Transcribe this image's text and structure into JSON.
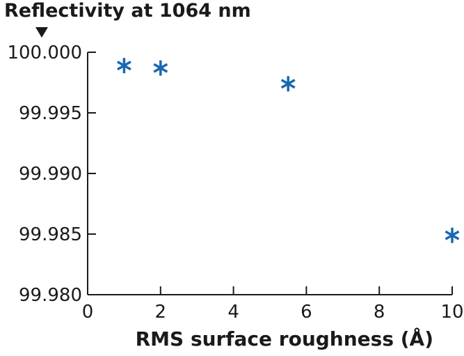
{
  "chart_data": {
    "type": "scatter",
    "title": "",
    "ylabel": "Reflectivity at 1064 nm",
    "xlabel": "RMS surface roughness (Å)",
    "xlim": [
      0,
      10
    ],
    "ylim": [
      99.98,
      100.0
    ],
    "xticks": [
      0,
      2,
      4,
      6,
      8,
      10
    ],
    "yticks": [
      99.98,
      99.985,
      99.99,
      99.995,
      100.0
    ],
    "xtick_labels": [
      "0",
      "2",
      "4",
      "6",
      "8",
      "10"
    ],
    "ytick_labels": [
      "99.980",
      "99.985",
      "99.990",
      "99.995",
      "100.000"
    ],
    "grid": false,
    "legend": "none",
    "marker": "asterisk",
    "series": [
      {
        "color": "#1a66b3",
        "points": [
          {
            "x": 1.0,
            "y": 99.9989
          },
          {
            "x": 2.0,
            "y": 99.9987
          },
          {
            "x": 5.5,
            "y": 99.9974
          },
          {
            "x": 10.0,
            "y": 99.9849
          }
        ]
      }
    ]
  }
}
